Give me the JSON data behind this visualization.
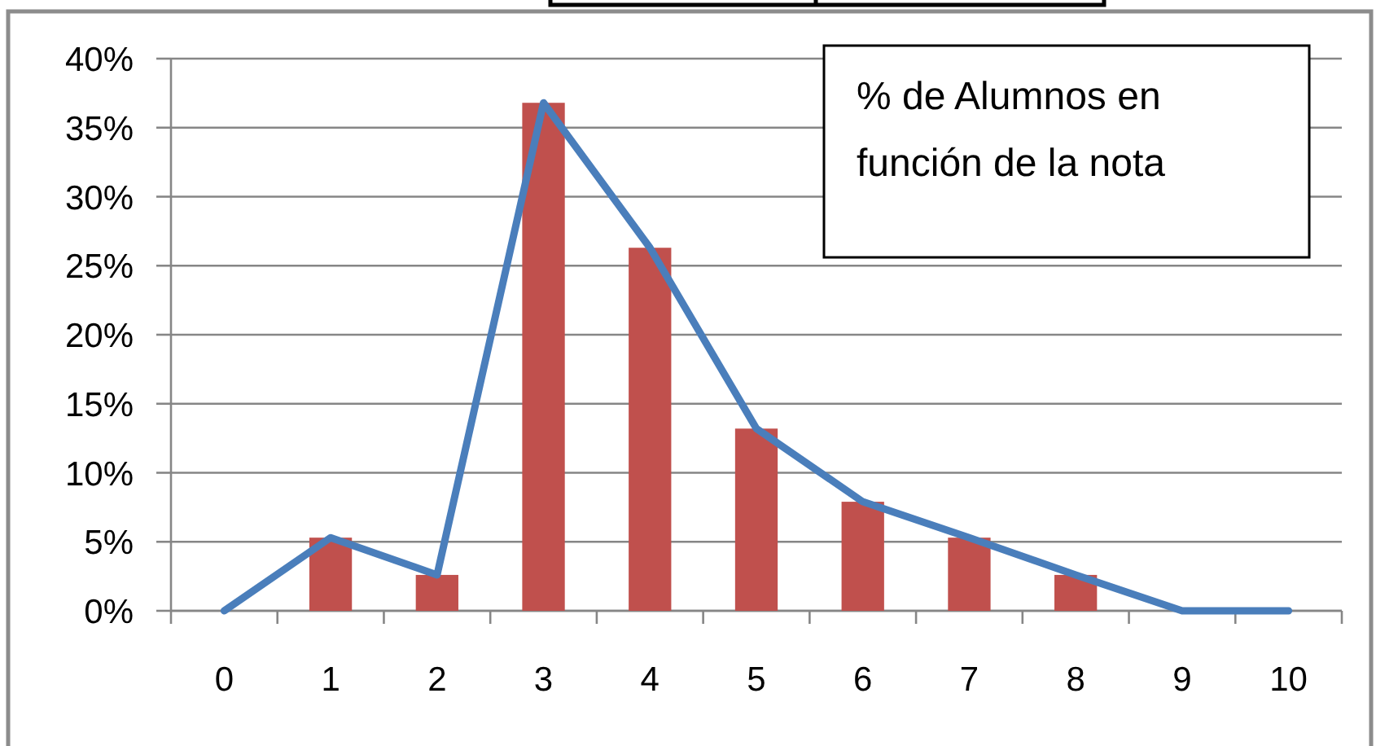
{
  "chart_data": {
    "type": "bar",
    "title": "% de Alumnos en función de la nota",
    "categories": [
      "0",
      "1",
      "2",
      "3",
      "4",
      "5",
      "6",
      "7",
      "8",
      "9",
      "10"
    ],
    "series": [
      {
        "color": "#c0504d",
        "values": [
          0,
          5.3,
          2.6,
          36.8,
          26.3,
          13.2,
          7.9,
          5.3,
          2.6,
          0,
          0
        ]
      },
      {
        "type": "line",
        "color": "#4a7ebb",
        "values": [
          0,
          5.3,
          2.6,
          36.8,
          26.3,
          13.2,
          7.9,
          5.3,
          2.6,
          0,
          0
        ]
      }
    ],
    "ylim": [
      0,
      40
    ],
    "yticks": [
      {
        "value": 0,
        "label": "0%"
      },
      {
        "value": 5,
        "label": "5%"
      },
      {
        "value": 10,
        "label": "10%"
      },
      {
        "value": 15,
        "label": "15%"
      },
      {
        "value": 20,
        "label": "20%"
      },
      {
        "value": 25,
        "label": "25%"
      },
      {
        "value": 30,
        "label": "30%"
      },
      {
        "value": 35,
        "label": "35%"
      },
      {
        "value": 40,
        "label": "40%"
      }
    ],
    "grid": "y"
  }
}
